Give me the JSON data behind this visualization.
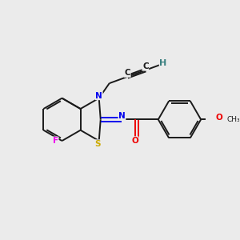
{
  "background_color": "#ebebeb",
  "bond_color": "#1a1a1a",
  "atom_colors": {
    "N": "#0000ee",
    "S": "#ccaa00",
    "F": "#ee00ee",
    "O": "#ee0000",
    "H": "#3a8080",
    "C": "#1a1a1a"
  },
  "figsize": [
    3.0,
    3.0
  ],
  "dpi": 100,
  "lw": 1.4,
  "fs": 7.5,
  "xlim": [
    0,
    10
  ],
  "ylim": [
    0,
    10
  ]
}
